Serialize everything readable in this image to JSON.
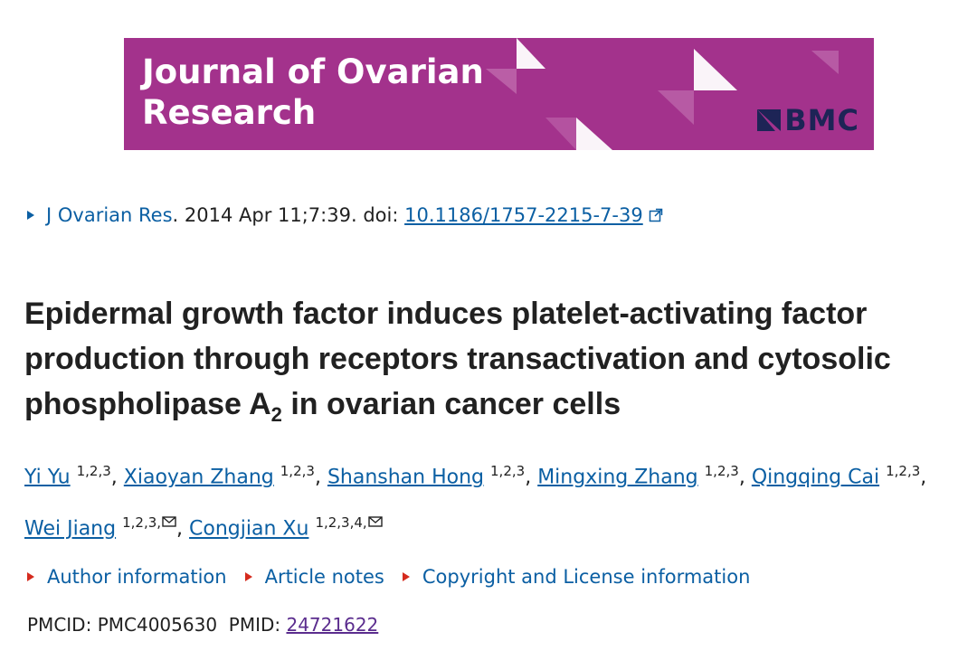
{
  "banner": {
    "journal_line1": "Journal of Ovarian",
    "journal_line2": "Research",
    "publisher": "BMC",
    "background_color": "#a3328c",
    "publisher_color": "#1d2456"
  },
  "citation": {
    "journal": "J Ovarian Res",
    "separator": ". ",
    "date_volume": "2014 Apr 11;7:39. doi: ",
    "doi": "10.1186/1757-2215-7-39",
    "doi_icon": "external-link-icon"
  },
  "article": {
    "title_part1": "Epidermal growth factor induces platelet-activating factor production through receptors transactivation and cytosolic phospholipase A",
    "title_sub": "2",
    "title_part2": " in ovarian cancer cells"
  },
  "authors": [
    {
      "name": "Yi Yu",
      "affil": "1,2,3",
      "sep": ", "
    },
    {
      "name": "Xiaoyan Zhang",
      "affil": "1,2,3",
      "sep": ", "
    },
    {
      "name": "Shanshan Hong",
      "affil": "1,2,3",
      "sep": ", "
    },
    {
      "name": "Mingxing Zhang",
      "affil": "1,2,3",
      "sep": ", "
    },
    {
      "name": "Qingqing Cai",
      "affil": "1,2,3",
      "sep": ", "
    },
    {
      "name": "Wei Jiang",
      "affil": "1,2,3,",
      "icon": "mail-icon",
      "sep": ", "
    },
    {
      "name": "Congjian Xu",
      "affil": "1,2,3,4,",
      "icon": "mail-icon",
      "sep": ""
    }
  ],
  "notes": {
    "author_info": "Author information",
    "article_notes": "Article notes",
    "copyright": "Copyright and License information"
  },
  "ids": {
    "pmcid_label": "PMCID: ",
    "pmcid": "PMC4005630",
    "pmid_label": "PMID: ",
    "pmid": "24721622"
  },
  "colors": {
    "link": "#0b5fa3",
    "visited_link": "#5b2d8e",
    "bullet_red": "#d52b1e"
  }
}
